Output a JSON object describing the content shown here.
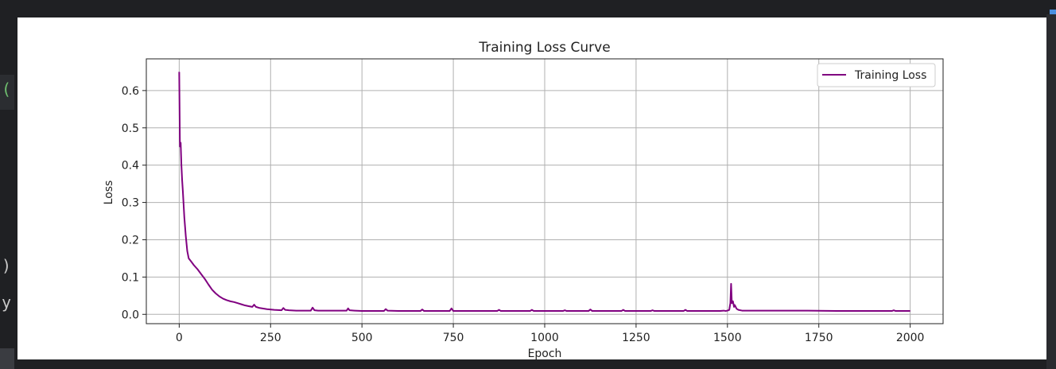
{
  "editor": {
    "gutter_glyphs": [
      "(",
      ")",
      "y"
    ],
    "colors": {
      "background": "#1f2023",
      "paren_green": "#6fbf6f",
      "text": "#c8c8c8",
      "accent": "#4a8fe0"
    }
  },
  "chart_data": {
    "type": "line",
    "title": "Training Loss Curve",
    "xlabel": "Epoch",
    "ylabel": "Loss",
    "xlim": [
      -90,
      2090
    ],
    "ylim": [
      -0.025,
      0.685
    ],
    "xticks": [
      0,
      250,
      500,
      750,
      1000,
      1250,
      1500,
      1750,
      2000
    ],
    "yticks": [
      0.0,
      0.1,
      0.2,
      0.3,
      0.4,
      0.5,
      0.6
    ],
    "ytick_labels": [
      "0.0",
      "0.1",
      "0.2",
      "0.3",
      "0.4",
      "0.5",
      "0.6"
    ],
    "grid": true,
    "legend_position": "top-right",
    "series": [
      {
        "name": "Training Loss",
        "color": "#800080",
        "x": [
          0,
          2,
          4,
          6,
          8,
          10,
          14,
          18,
          22,
          26,
          30,
          34,
          40,
          50,
          60,
          70,
          80,
          90,
          100,
          110,
          120,
          130,
          140,
          150,
          160,
          170,
          180,
          190,
          200,
          205,
          210,
          220,
          240,
          260,
          280,
          285,
          290,
          300,
          320,
          340,
          360,
          365,
          370,
          380,
          400,
          420,
          440,
          458,
          462,
          466,
          480,
          500,
          520,
          540,
          560,
          565,
          570,
          600,
          640,
          660,
          665,
          670,
          700,
          740,
          745,
          750,
          800,
          860,
          870,
          875,
          880,
          950,
          960,
          965,
          970,
          1050,
          1055,
          1060,
          1120,
          1125,
          1130,
          1200,
          1210,
          1215,
          1220,
          1290,
          1295,
          1300,
          1370,
          1380,
          1385,
          1390,
          1480,
          1490,
          1495,
          1500,
          1505,
          1508,
          1510,
          1512,
          1515,
          1518,
          1520,
          1525,
          1530,
          1540,
          1560,
          1600,
          1700,
          1800,
          1870,
          1880,
          1890,
          1950,
          1955,
          1960,
          2000
        ],
        "values": [
          0.65,
          0.45,
          0.46,
          0.4,
          0.36,
          0.33,
          0.26,
          0.21,
          0.17,
          0.15,
          0.145,
          0.14,
          0.132,
          0.121,
          0.108,
          0.095,
          0.08,
          0.066,
          0.056,
          0.048,
          0.042,
          0.038,
          0.035,
          0.033,
          0.03,
          0.027,
          0.024,
          0.022,
          0.02,
          0.026,
          0.02,
          0.017,
          0.014,
          0.012,
          0.011,
          0.017,
          0.012,
          0.011,
          0.01,
          0.01,
          0.01,
          0.018,
          0.011,
          0.01,
          0.01,
          0.01,
          0.01,
          0.01,
          0.016,
          0.011,
          0.01,
          0.009,
          0.009,
          0.009,
          0.009,
          0.014,
          0.01,
          0.009,
          0.009,
          0.009,
          0.013,
          0.009,
          0.009,
          0.009,
          0.016,
          0.009,
          0.009,
          0.009,
          0.009,
          0.012,
          0.009,
          0.009,
          0.009,
          0.012,
          0.009,
          0.009,
          0.011,
          0.009,
          0.009,
          0.013,
          0.009,
          0.009,
          0.009,
          0.012,
          0.009,
          0.009,
          0.011,
          0.009,
          0.009,
          0.009,
          0.012,
          0.009,
          0.009,
          0.01,
          0.009,
          0.01,
          0.012,
          0.03,
          0.082,
          0.03,
          0.035,
          0.02,
          0.025,
          0.015,
          0.012,
          0.01,
          0.01,
          0.01,
          0.01,
          0.009,
          0.009,
          0.009,
          0.009,
          0.009,
          0.011,
          0.009,
          0.009
        ]
      }
    ]
  }
}
